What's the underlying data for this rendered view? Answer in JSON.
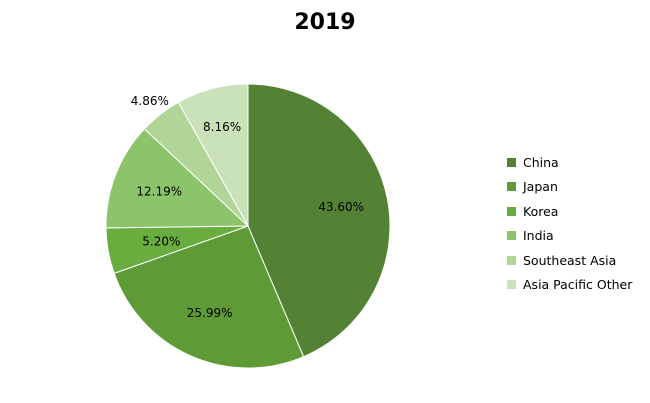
{
  "chart_data": {
    "type": "pie",
    "title": "2019",
    "categories": [
      "China",
      "Japan",
      "Korea",
      "India",
      "Southeast Asia",
      "Asia Pacific Other"
    ],
    "values": [
      43.6,
      25.99,
      5.2,
      12.19,
      4.86,
      8.16
    ],
    "labels": [
      "43.60%",
      "25.99%",
      "5.20%",
      "12.19%",
      "4.86%",
      "8.16%"
    ],
    "colors": [
      "#548235",
      "#5e9b36",
      "#6aad3f",
      "#8cc46b",
      "#b0d597",
      "#cae2ba"
    ],
    "legend_position": "right",
    "start": "top, clockwise"
  }
}
